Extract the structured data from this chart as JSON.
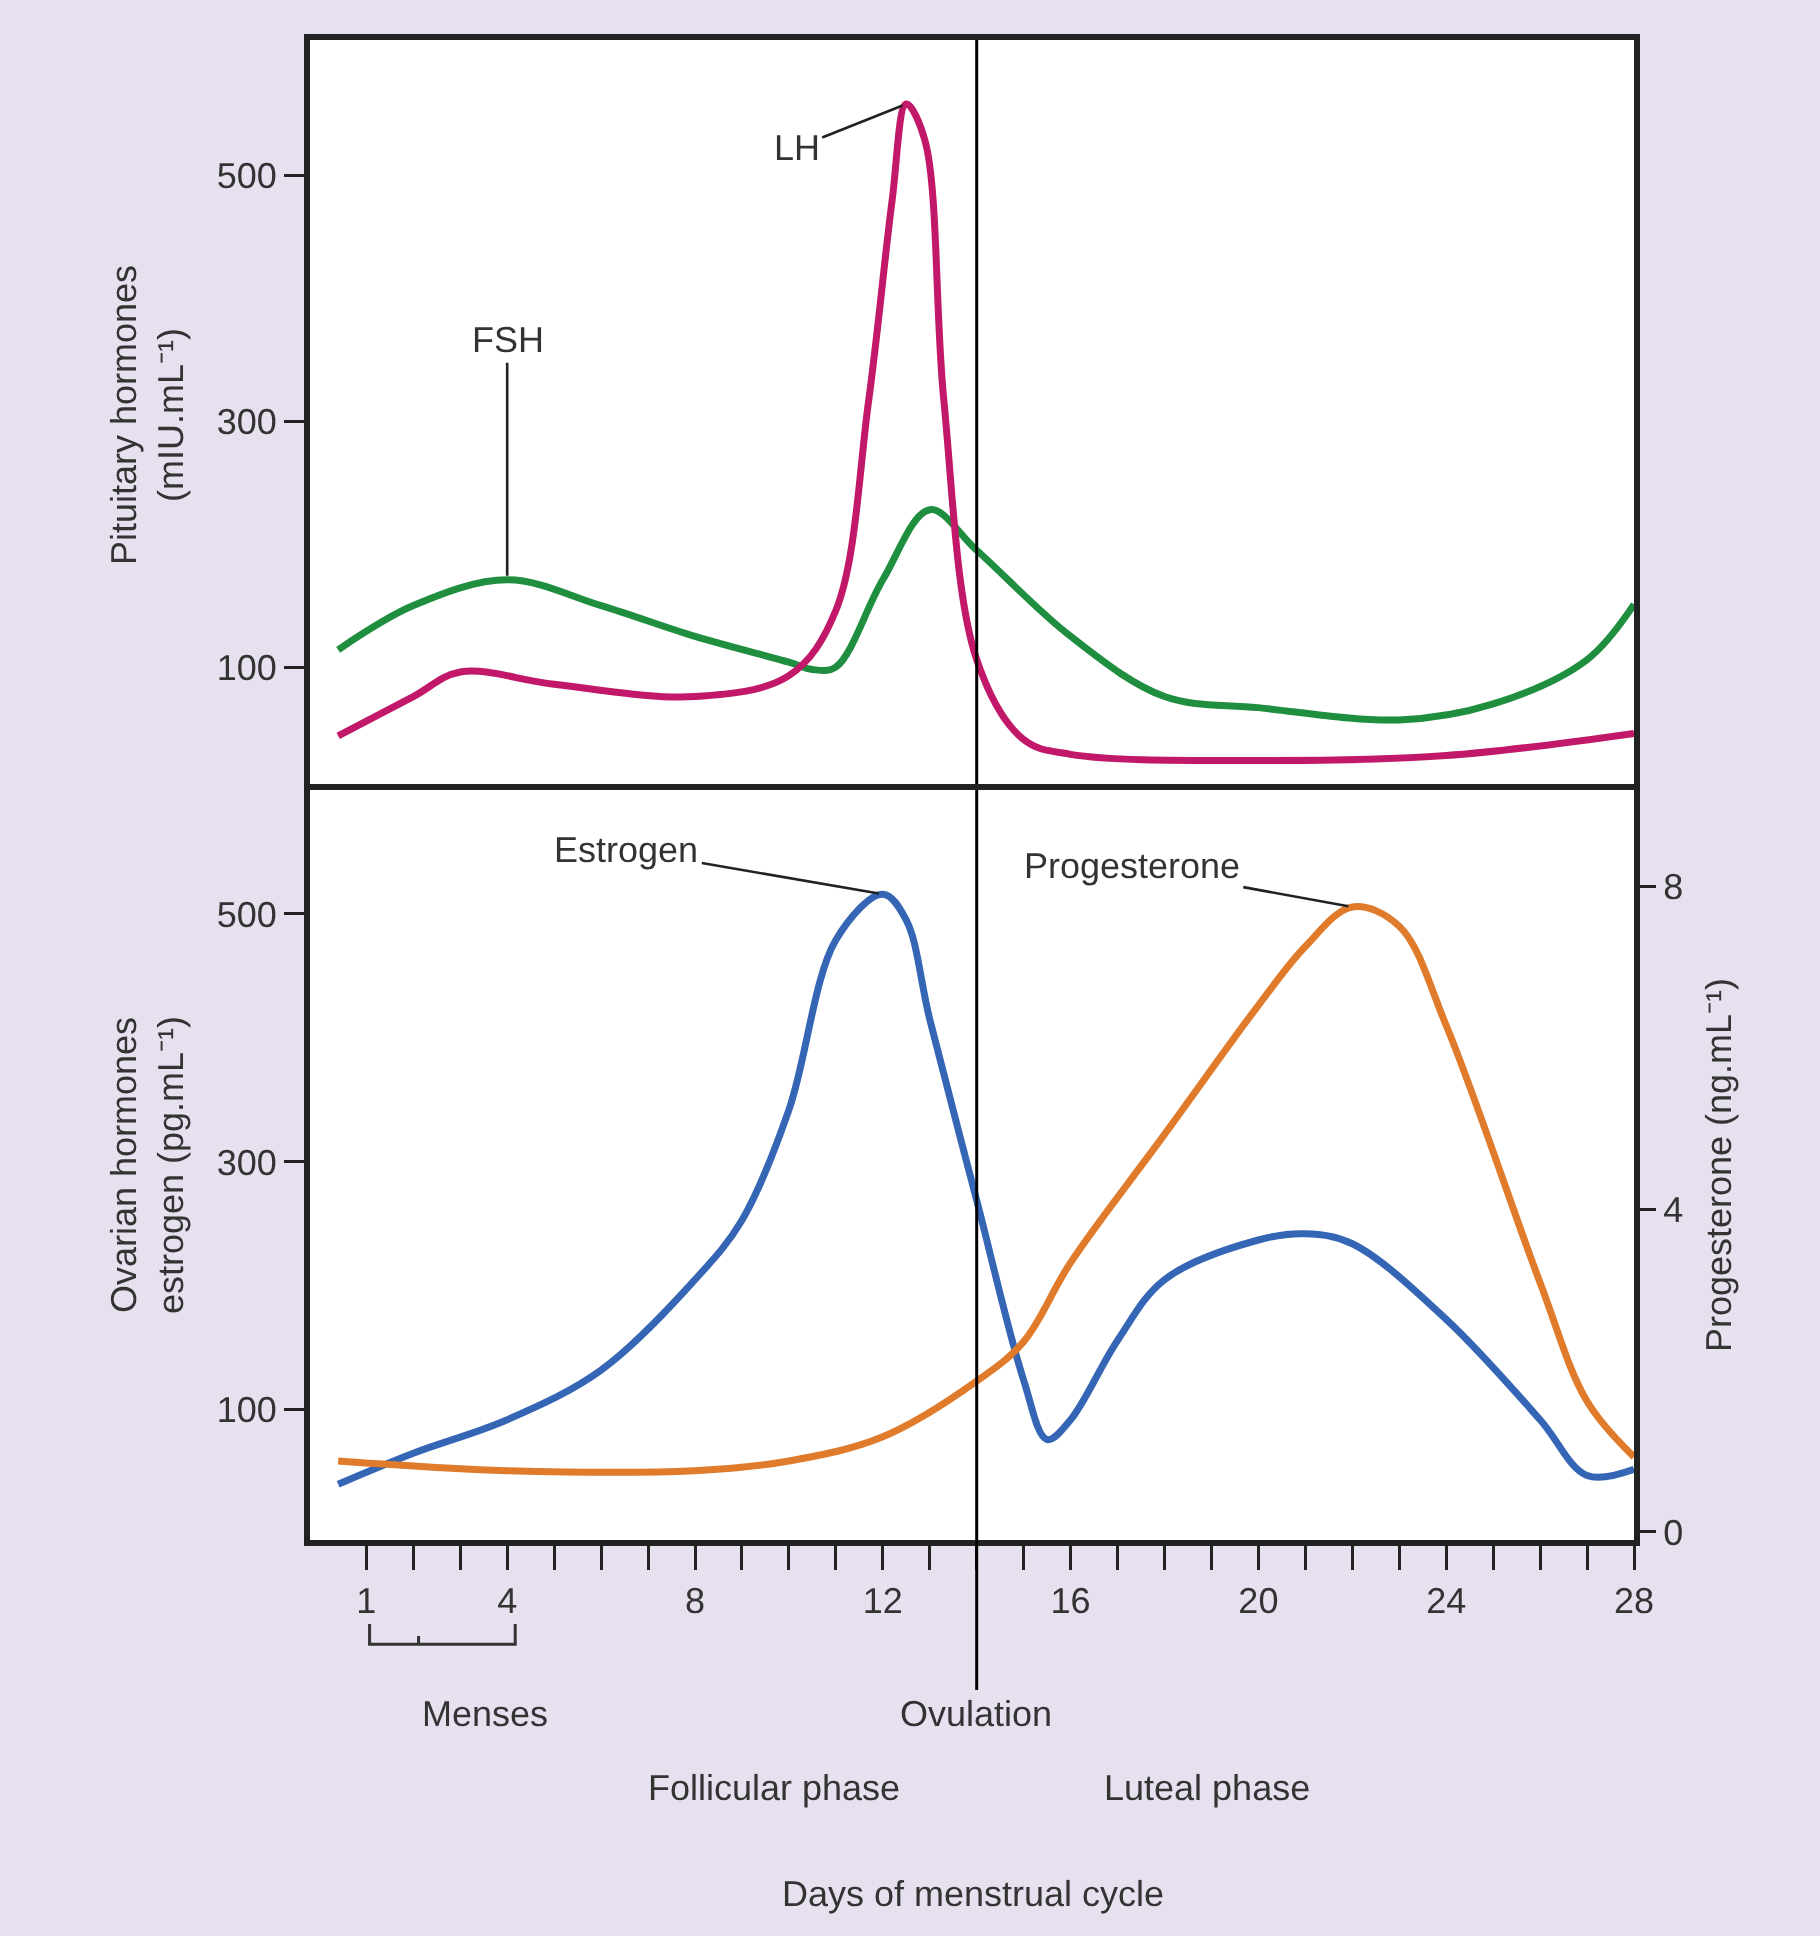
{
  "chart_data": [
    {
      "type": "line",
      "ylabel": "Pituitary hormones\n(mIU.mL⁻¹)",
      "xlim": [
        -0.2,
        28
      ],
      "ylim": [
        0,
        610
      ],
      "yticks": [
        100,
        300,
        500
      ],
      "tick_labels": "y",
      "grid": false,
      "legend": false,
      "series": [
        {
          "name": "FSH",
          "color": "#1f8f3f",
          "x": [
            0.4,
            2,
            4,
            6,
            8,
            10,
            10.5,
            11,
            12,
            13,
            14,
            16,
            18,
            20,
            23,
            25,
            27,
            28
          ],
          "values": [
            114,
            150,
            171,
            150,
            125,
            104,
            98,
            100,
            171,
            228,
            195,
            125,
            76,
            67,
            57,
            70,
            106,
            151
          ]
        },
        {
          "name": "LH",
          "color": "#c2186a",
          "x": [
            0.4,
            2,
            3,
            5,
            8,
            10,
            11,
            11.7,
            12.2,
            12.5,
            12.9,
            13.3,
            14,
            15,
            16,
            20,
            24,
            28
          ],
          "values": [
            44,
            76,
            96,
            86,
            76,
            93,
            146,
            317,
            480,
            558,
            528,
            317,
            106,
            41,
            29,
            24,
            28,
            46
          ]
        }
      ],
      "ref_lines": [
        {
          "axis": "x",
          "value": 14,
          "color": "#000000"
        }
      ]
    },
    {
      "type": "line",
      "ylabel": "Ovarian hormones\nestrogen (pg.mL⁻¹)",
      "y2label": "Progesterone (ng.mL⁻¹)",
      "xlabel": "Days of menstrual cycle",
      "xlim": [
        -0.2,
        28
      ],
      "ylim": [
        -5,
        600
      ],
      "yticks": [
        100,
        300,
        500
      ],
      "y2lim": [
        -0.1,
        9.2
      ],
      "y2ticks": [
        0,
        4,
        8
      ],
      "grid": false,
      "legend": false,
      "xticks": [
        1,
        {
          "value": 2,
          "label": null
        },
        {
          "value": 3,
          "label": null
        },
        4,
        {
          "value": 5,
          "label": null
        },
        {
          "value": 6,
          "label": null
        },
        {
          "value": 7,
          "label": null
        },
        8,
        {
          "value": 9,
          "label": null
        },
        {
          "value": 10,
          "label": null
        },
        {
          "value": 11,
          "label": null
        },
        12,
        {
          "value": 13,
          "label": null
        },
        {
          "value": 14,
          "label": null
        },
        {
          "value": 15,
          "label": null
        },
        16,
        {
          "value": 17,
          "label": null
        },
        {
          "value": 18,
          "label": null
        },
        {
          "value": 19,
          "label": null
        },
        20,
        {
          "value": 21,
          "label": null
        },
        {
          "value": 22,
          "label": null
        },
        {
          "value": 23,
          "label": null
        },
        24,
        {
          "value": 25,
          "label": null
        },
        {
          "value": 26,
          "label": null
        },
        {
          "value": 27,
          "label": null
        },
        28
      ],
      "series": [
        {
          "name": "Estrogen",
          "color": "#3566b5",
          "x": [
            0.4,
            2,
            4,
            6,
            8,
            9,
            10,
            11,
            12,
            12.5,
            13,
            14,
            15,
            15.5,
            16,
            17,
            18,
            20,
            21,
            22,
            24,
            26,
            27,
            28
          ],
          "values": [
            40,
            65,
            92,
            132,
            205,
            253,
            342,
            479,
            516,
            495,
            415,
            269,
            124,
            76,
            92,
            156,
            205,
            237,
            242,
            234,
            173,
            92,
            47,
            52
          ]
        },
        {
          "name": "Progesterone",
          "color": "#e07b2b",
          "axis": "y2",
          "x": [
            0.4,
            4,
            8,
            10,
            12,
            14,
            15,
            16,
            18,
            20,
            21,
            22,
            23,
            24,
            26,
            27,
            28
          ],
          "values": [
            0.88,
            0.76,
            0.76,
            0.88,
            1.18,
            1.87,
            2.36,
            3.34,
            4.93,
            6.53,
            7.26,
            7.75,
            7.51,
            6.28,
            3.09,
            1.62,
            0.93
          ]
        }
      ],
      "ref_lines": [
        {
          "axis": "x",
          "value": 14,
          "label": "Ovulation",
          "color": "#000000"
        }
      ],
      "annotations": [
        "Menses",
        "Follicular phase",
        "Luteal phase"
      ]
    }
  ]
}
